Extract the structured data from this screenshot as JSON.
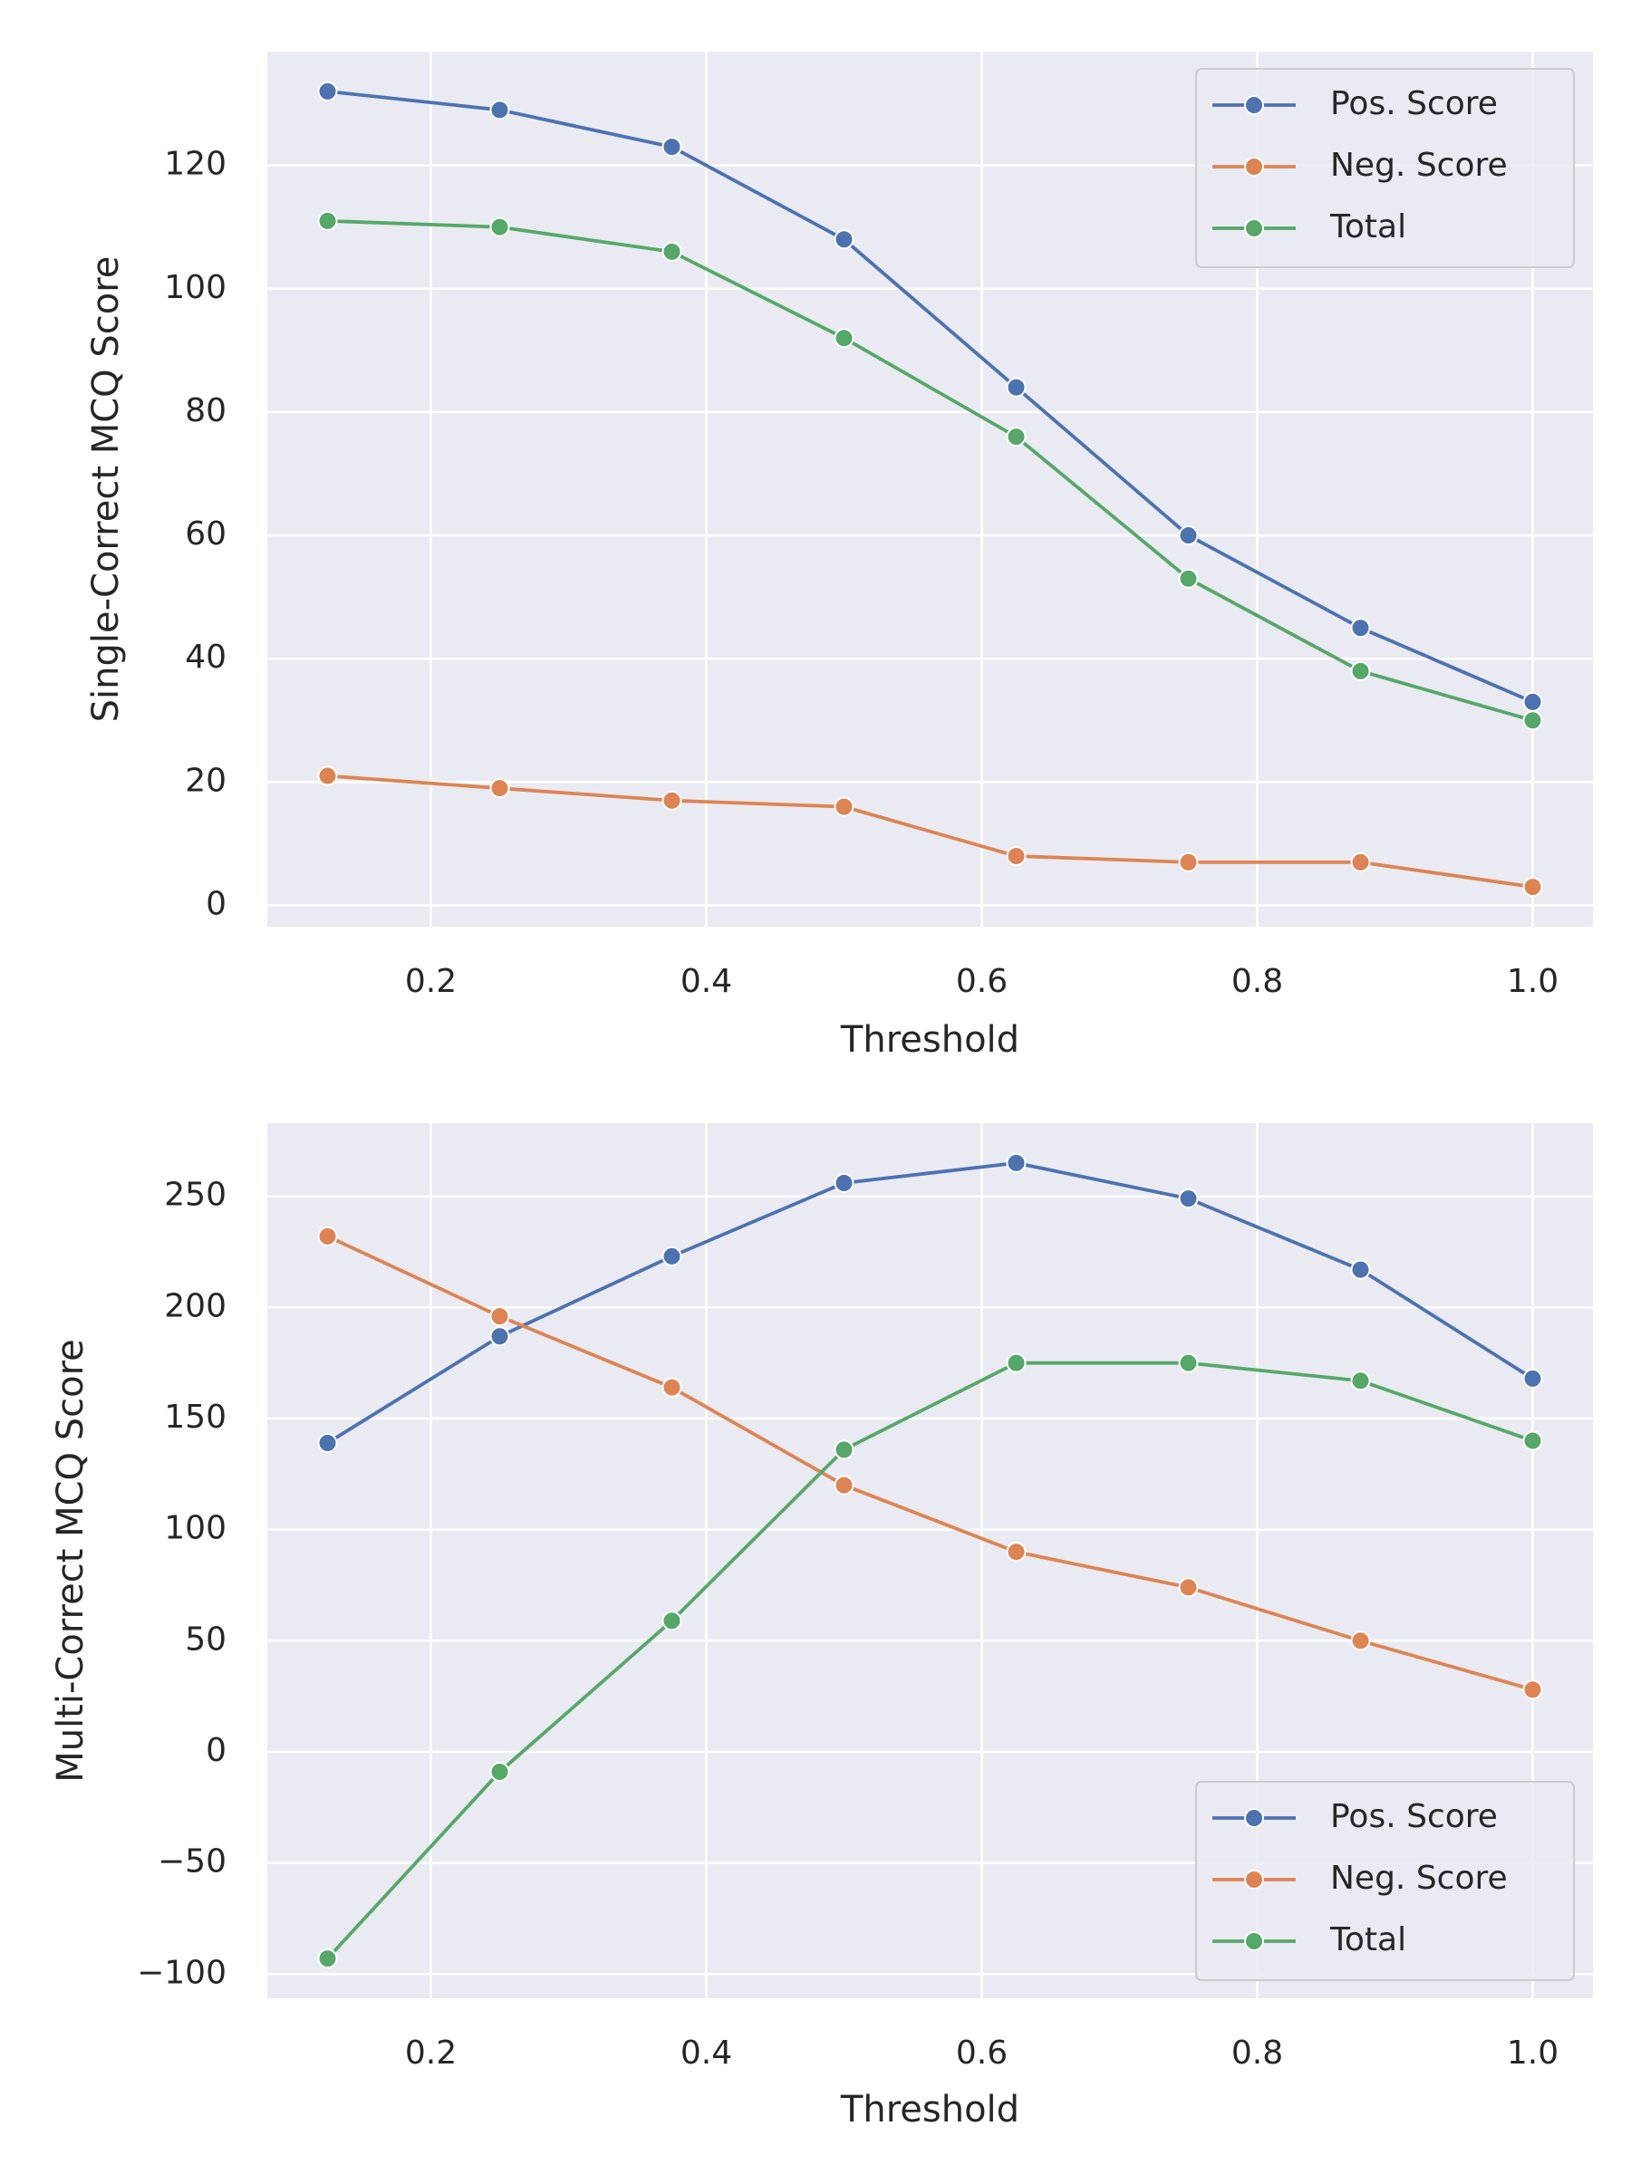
{
  "chart_data": [
    {
      "type": "line",
      "x_label": "Threshold",
      "y_label": "Single-Correct MCQ Score",
      "x": [
        0.125,
        0.25,
        0.375,
        0.5,
        0.625,
        0.75,
        0.875,
        1.0
      ],
      "series": [
        {
          "name": "Pos. Score",
          "color": "#4c72b0",
          "values": [
            132,
            129,
            123,
            108,
            84,
            60,
            45,
            33
          ]
        },
        {
          "name": "Neg. Score",
          "color": "#dd8452",
          "values": [
            21,
            19,
            17,
            16,
            8,
            7,
            7,
            3
          ]
        },
        {
          "name": "Total",
          "color": "#55a868",
          "values": [
            111,
            110,
            106,
            92,
            76,
            53,
            38,
            30
          ]
        }
      ],
      "xlim": [
        0.08125,
        1.04375
      ],
      "xticks": [
        0.2,
        0.4,
        0.6,
        0.8,
        {
          "value": 1,
          "label": "1.0"
        }
      ],
      "ylim": [
        -3.45,
        138.45
      ],
      "yticks": [
        0,
        20,
        40,
        60,
        80,
        100,
        120
      ],
      "grid": true,
      "legend": "upper right"
    },
    {
      "type": "line",
      "x_label": "Threshold",
      "y_label": "Multi-Correct MCQ Score",
      "x": [
        0.125,
        0.25,
        0.375,
        0.5,
        0.625,
        0.75,
        0.875,
        1.0
      ],
      "series": [
        {
          "name": "Pos. Score",
          "color": "#4c72b0",
          "values": [
            139,
            187,
            223,
            256,
            265,
            249,
            217,
            168
          ]
        },
        {
          "name": "Neg. Score",
          "color": "#dd8452",
          "values": [
            232,
            196,
            164,
            120,
            90,
            74,
            50,
            28
          ]
        },
        {
          "name": "Total",
          "color": "#55a868",
          "values": [
            -93,
            -9,
            59,
            136,
            175,
            175,
            167,
            140
          ]
        }
      ],
      "xlim": [
        0.08125,
        1.04375
      ],
      "xticks": [
        0.2,
        0.4,
        0.6,
        0.8,
        {
          "value": 1,
          "label": "1.0"
        }
      ],
      "ylim": [
        -110.9,
        282.9
      ],
      "yticks": [
        {
          "value": -100,
          "label": "−100"
        },
        {
          "value": -50,
          "label": "−50"
        },
        0,
        50,
        100,
        150,
        200,
        250
      ],
      "grid": true,
      "legend": "lower right"
    }
  ]
}
